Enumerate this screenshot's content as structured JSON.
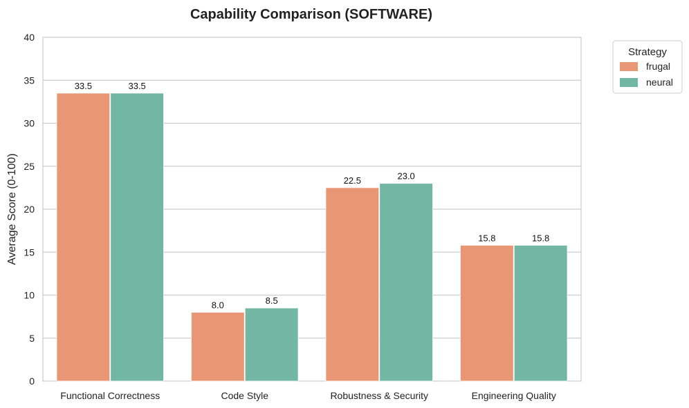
{
  "chart_data": {
    "type": "bar",
    "title": "Capability Comparison (SOFTWARE)",
    "xlabel": "",
    "ylabel": "Average Score (0-100)",
    "ylim": [
      0,
      40
    ],
    "yticks": [
      0,
      5,
      10,
      15,
      20,
      25,
      30,
      35,
      40
    ],
    "grid": true,
    "legend_placement": "outside-top-right",
    "legend_title": "Strategy",
    "categories": [
      "Functional Correctness",
      "Code Style",
      "Robustness & Security",
      "Engineering Quality"
    ],
    "series": [
      {
        "name": "frugal",
        "color": "#E89673",
        "values": [
          33.5,
          8.0,
          22.5,
          15.8
        ]
      },
      {
        "name": "neural",
        "color": "#72B6A4",
        "values": [
          33.5,
          8.5,
          23.0,
          15.8
        ]
      }
    ]
  }
}
